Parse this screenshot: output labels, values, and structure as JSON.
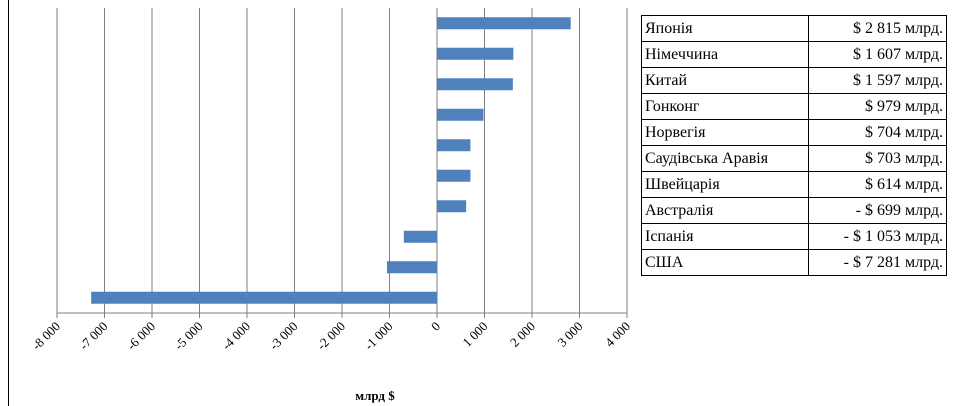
{
  "chart_data": {
    "type": "bar",
    "orientation": "horizontal",
    "categories": [
      "Японія",
      "Німеччина",
      "Китай",
      "Гонконг",
      "Норвегія",
      "Саудівська Аравія",
      "Швейцарія",
      "Австралія",
      "Іспанія",
      "США"
    ],
    "values": [
      2815,
      1607,
      1597,
      979,
      704,
      703,
      614,
      -699,
      -1053,
      -7281
    ],
    "xlim": [
      -8000,
      4000
    ],
    "xticks": [
      -8000,
      -7000,
      -6000,
      -5000,
      -4000,
      -3000,
      -2000,
      -1000,
      0,
      1000,
      2000,
      3000,
      4000
    ],
    "xtick_labels": [
      "-8 000",
      "-7 000",
      "-6 000",
      "-5 000",
      "-4 000",
      "-3 000",
      "-2 000",
      "-1 000",
      "0",
      "1 000",
      "2 000",
      "3 000",
      "4 000"
    ],
    "xlabel": "млрд $",
    "bar_color": "#4f81bd",
    "grid": true,
    "category_labels_shown": false
  },
  "table": {
    "rows": [
      {
        "country": "Японія",
        "value": "$ 2 815 млрд."
      },
      {
        "country": "Німеччина",
        "value": "$ 1 607 млрд."
      },
      {
        "country": "Китай",
        "value": "$ 1 597 млрд."
      },
      {
        "country": "Гонконг",
        "value": "$ 979 млрд."
      },
      {
        "country": "Норвегія",
        "value": "$ 704 млрд."
      },
      {
        "country": "Саудівська Аравія",
        "value": "$ 703 млрд."
      },
      {
        "country": "Швейцарія",
        "value": "$ 614 млрд."
      },
      {
        "country": "Австралія",
        "value": "- $ 699 млрд."
      },
      {
        "country": "Іспанія",
        "value": "- $ 1 053 млрд."
      },
      {
        "country": "США",
        "value": "- $ 7 281 млрд."
      }
    ]
  }
}
